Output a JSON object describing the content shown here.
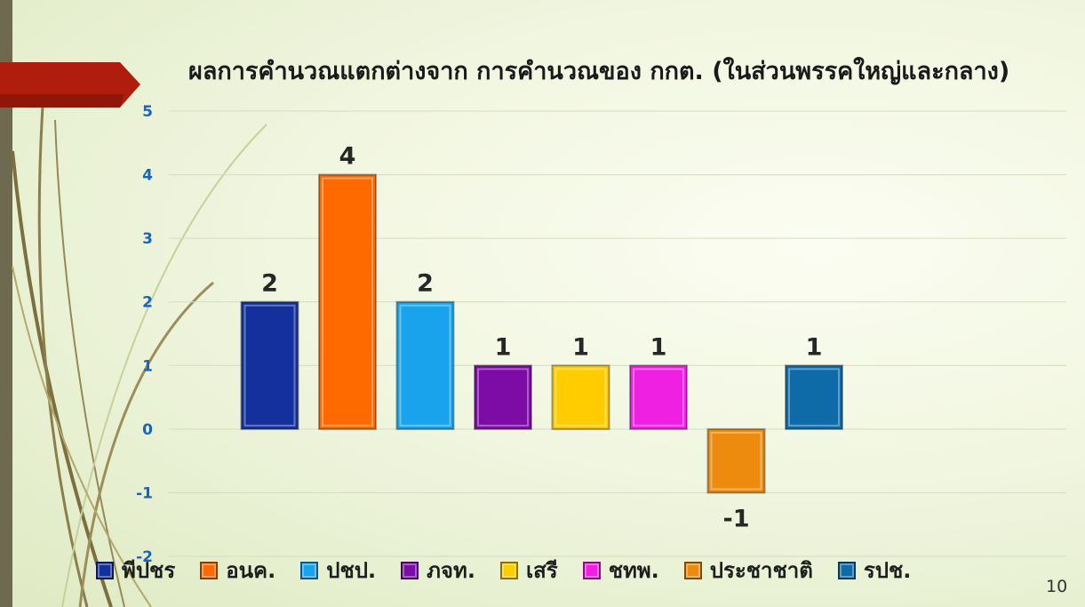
{
  "title": "ผลการคำนวณแตกต่างจาก การคำนวณของ กกต.  (ในส่วนพรรคใหญ่และกลาง)",
  "page_number": "10",
  "chart_data": {
    "type": "bar",
    "title": "ผลการคำนวณแตกต่างจาก การคำนวณของ กกต.  (ในส่วนพรรคใหญ่และกลาง)",
    "xlabel": "",
    "ylabel": "",
    "ylim": [
      -2,
      5
    ],
    "yticks": [
      "5",
      "4",
      "3",
      "2",
      "1",
      "0",
      "-1",
      "-2"
    ],
    "grid": true,
    "legend_position": "bottom",
    "series": [
      {
        "name": "พีปชร",
        "value": 2,
        "label": "2",
        "color": "#13309c"
      },
      {
        "name": "อนค.",
        "value": 4,
        "label": "4",
        "color": "#ff6a00"
      },
      {
        "name": "ปชป.",
        "value": 2,
        "label": "2",
        "color": "#19a3ec"
      },
      {
        "name": "ภจท.",
        "value": 1,
        "label": "1",
        "color": "#7d0ca6"
      },
      {
        "name": "เสรี",
        "value": 1,
        "label": "1",
        "color": "#ffcc00"
      },
      {
        "name": "ชทพ.",
        "value": 1,
        "label": "1",
        "color": "#f020e3"
      },
      {
        "name": "ประชาชาติ",
        "value": -1,
        "label": "-1",
        "color": "#ec8b0e"
      },
      {
        "name": "รปช.",
        "value": 1,
        "label": "1",
        "color": "#0f6aa8"
      }
    ]
  }
}
